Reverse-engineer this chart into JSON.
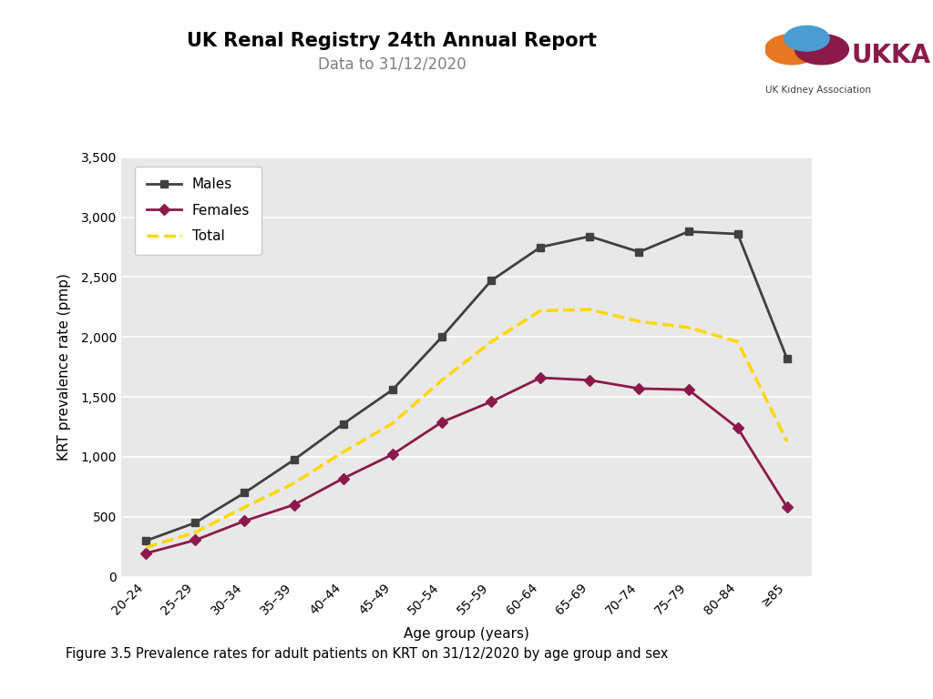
{
  "title": "UK Renal Registry 24th Annual Report",
  "subtitle": "Data to 31/12/2020",
  "caption": "Figure 3.5 Prevalence rates for adult patients on KRT on 31/12/2020 by age group and sex",
  "xlabel": "Age group (years)",
  "ylabel": "KRT prevalence rate (pmp)",
  "age_groups": [
    "20–24",
    "25–29",
    "30–34",
    "35–39",
    "40–44",
    "45–49",
    "50–54",
    "55–59",
    "60–64",
    "65–69",
    "70–74",
    "75–79",
    "80–84",
    "≥85"
  ],
  "males": [
    300,
    450,
    700,
    975,
    1275,
    1560,
    2000,
    2470,
    2750,
    2840,
    2710,
    2880,
    2860,
    1820
  ],
  "females": [
    195,
    305,
    465,
    600,
    820,
    1020,
    1290,
    1460,
    1660,
    1640,
    1570,
    1560,
    1240,
    580
  ],
  "total": [
    245,
    370,
    580,
    780,
    1040,
    1280,
    1640,
    1960,
    2220,
    2230,
    2130,
    2080,
    1960,
    1130
  ],
  "males_color": "#404040",
  "females_color": "#8B1A4A",
  "total_color": "#FFD700",
  "bg_color": "#E8E8E8",
  "ylim": [
    0,
    3500
  ],
  "yticks": [
    0,
    500,
    1000,
    1500,
    2000,
    2500,
    3000,
    3500
  ],
  "title_fontsize": 15,
  "subtitle_fontsize": 12,
  "axis_fontsize": 11,
  "tick_fontsize": 10,
  "legend_fontsize": 11,
  "caption_fontsize": 10.5
}
